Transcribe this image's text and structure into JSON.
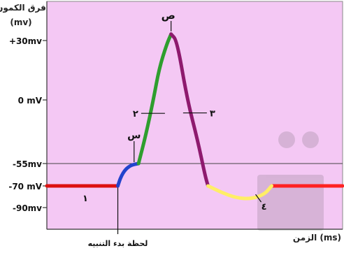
{
  "chart_data": {
    "type": "line",
    "title": "",
    "ylabel_line1": "فرق الكمون",
    "ylabel_line2": "(mv)",
    "xlabel": "الزمن (ms)",
    "y_ticks": [
      {
        "label": "+30mv",
        "value": 30
      },
      {
        "label": "0 mV",
        "value": 0
      },
      {
        "label": "-55mv",
        "value": -55
      },
      {
        "label": "-70 mV",
        "value": -70
      },
      {
        "label": "-90mv",
        "value": -90
      }
    ],
    "ylim": [
      -100,
      40
    ],
    "xlim": [
      0,
      100
    ],
    "threshold_line": -55,
    "stimulus_label": "لحظة بدء التنبيه",
    "stimulus_x": 24,
    "segments": [
      {
        "name": "1",
        "color": "#dd1111",
        "points": [
          [
            0,
            -70
          ],
          [
            24,
            -70
          ]
        ]
      },
      {
        "name": "",
        "color": "#ff2222",
        "points": [
          [
            76,
            -70
          ],
          [
            100,
            -70
          ]
        ]
      },
      {
        "name": "",
        "color": "#2244cc",
        "points": [
          [
            24,
            -70
          ],
          [
            25,
            -64
          ],
          [
            26.5,
            -59
          ],
          [
            28.5,
            -56
          ],
          [
            31,
            -55
          ]
        ]
      },
      {
        "name": "2",
        "color": "#2e9e2e",
        "points": [
          [
            31,
            -55
          ],
          [
            33.5,
            -30
          ],
          [
            36,
            0
          ],
          [
            38,
            16
          ],
          [
            40.5,
            28
          ],
          [
            42,
            32
          ]
        ]
      },
      {
        "name": "3",
        "color": "#8e1a6e",
        "points": [
          [
            42,
            32
          ],
          [
            44,
            30
          ],
          [
            47.5,
            0
          ],
          [
            51,
            -35
          ],
          [
            53.5,
            -63
          ],
          [
            54.5,
            -70
          ]
        ]
      },
      {
        "name": "4",
        "color": "#ffee66",
        "points": [
          [
            54.5,
            -70
          ],
          [
            59,
            -76
          ],
          [
            64,
            -81
          ],
          [
            69,
            -82
          ],
          [
            73.5,
            -78
          ],
          [
            76,
            -70
          ]
        ]
      }
    ],
    "point_labels": [
      {
        "text": "ص",
        "x": 42,
        "y": 32
      },
      {
        "text": "س",
        "x": 29.5,
        "y": -55
      }
    ],
    "segment_labels": [
      {
        "text": "١",
        "x": 13,
        "y": -75
      },
      {
        "text": "٢",
        "x": 30,
        "y": -14
      },
      {
        "text": "٣",
        "x": 56,
        "y": -10
      },
      {
        "text": "٤",
        "x": 72,
        "y": -83
      }
    ],
    "plot_background": "#f4c8f4",
    "axis_color": "#333333"
  }
}
